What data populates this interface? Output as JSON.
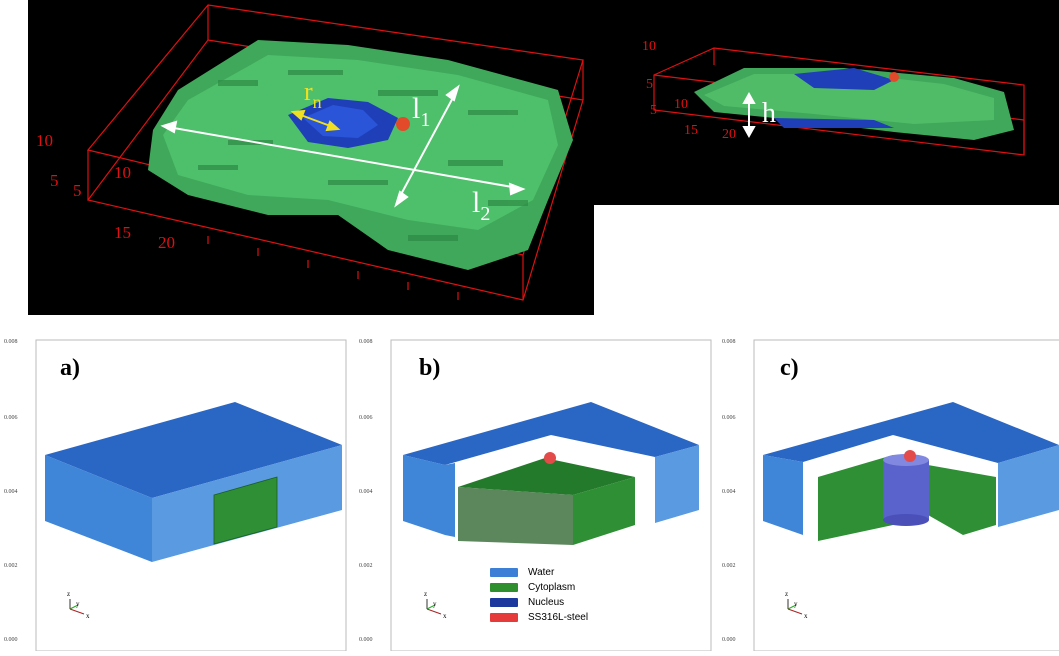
{
  "top_left": {
    "labels": {
      "rn_main": "r",
      "rn_sub": "n",
      "l1_main": "l",
      "l1_sub": "1",
      "l2_main": "l",
      "l2_sub": "2"
    },
    "axis_ticks": [
      "10",
      "5",
      "5",
      "10",
      "15",
      "20"
    ]
  },
  "top_right": {
    "labels": {
      "h": "h"
    },
    "axis_ticks": [
      "10",
      "5",
      "5",
      "10",
      "15",
      "20"
    ]
  },
  "panels": [
    {
      "letter": "a)"
    },
    {
      "letter": "b)"
    },
    {
      "letter": "c)"
    }
  ],
  "y_ticks": [
    "0.008",
    "0.006",
    "0.004",
    "0.002",
    "0.000"
  ],
  "triad": {
    "z": "z",
    "y": "y",
    "x": "x"
  },
  "legend": [
    {
      "label": "Water",
      "color": "#3b7fd6"
    },
    {
      "label": "Cytoplasm",
      "color": "#2f8f2f"
    },
    {
      "label": "Nucleus",
      "color": "#1c3a9e"
    },
    {
      "label": "SS316L-steel",
      "color": "#e53b3b"
    }
  ]
}
